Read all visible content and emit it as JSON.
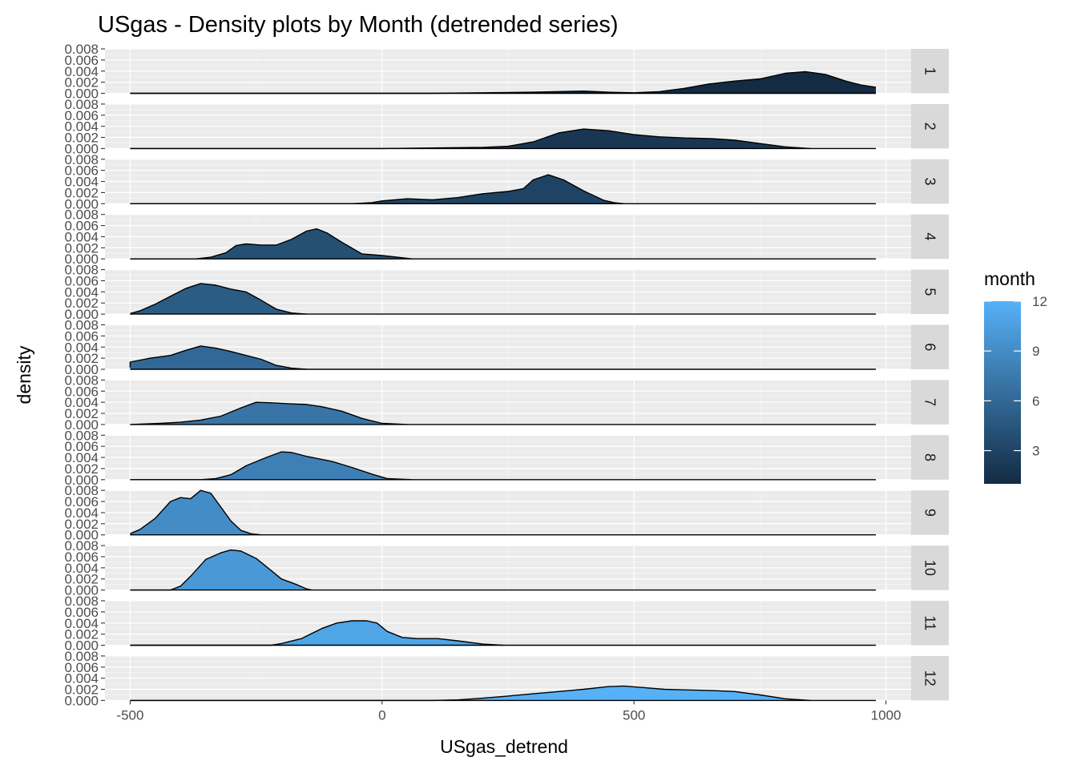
{
  "chart_data": {
    "type": "area",
    "title": "USgas - Density plots by Month (detrended series)",
    "xlabel": "USgas_detrend",
    "ylabel": "density",
    "x_range": [
      -500,
      980
    ],
    "xlim": [
      -550,
      1050
    ],
    "ylim": [
      0,
      0.008
    ],
    "x_ticks": [
      -500,
      0,
      500,
      1000
    ],
    "x_tick_labels": [
      "-500",
      "0",
      "500",
      "1000"
    ],
    "y_ticks": [
      0,
      0.002,
      0.004,
      0.006,
      0.008
    ],
    "y_tick_labels": [
      "0.000",
      "0.002",
      "0.004",
      "0.006",
      "0.008"
    ],
    "grid": true,
    "facets": "rows by month",
    "legend": {
      "title": "month",
      "placement": "right",
      "type": "colorbar",
      "range": [
        1,
        12
      ],
      "breaks": [
        3,
        6,
        9,
        12
      ],
      "break_labels": [
        "3",
        "6",
        "9",
        "12"
      ],
      "color_low": "#132b43",
      "color_high": "#56b1f7"
    },
    "panel_background": "#ebebeb",
    "strip_background": "#d9d9d9",
    "series": [
      {
        "name": "1",
        "points": [
          [
            -500,
            0
          ],
          [
            100,
            0
          ],
          [
            200,
            0.0001
          ],
          [
            300,
            0.0002
          ],
          [
            400,
            0.0004
          ],
          [
            450,
            0.0002
          ],
          [
            500,
            0.0001
          ],
          [
            550,
            0.0003
          ],
          [
            600,
            0.0009
          ],
          [
            650,
            0.0017
          ],
          [
            700,
            0.0022
          ],
          [
            750,
            0.0026
          ],
          [
            800,
            0.0036
          ],
          [
            840,
            0.0039
          ],
          [
            880,
            0.0034
          ],
          [
            920,
            0.0022
          ],
          [
            950,
            0.0015
          ],
          [
            980,
            0.0011
          ]
        ]
      },
      {
        "name": "2",
        "points": [
          [
            -500,
            0
          ],
          [
            0,
            0
          ],
          [
            100,
            0.0001
          ],
          [
            200,
            0.0002
          ],
          [
            250,
            0.0004
          ],
          [
            300,
            0.0012
          ],
          [
            350,
            0.0028
          ],
          [
            400,
            0.0035
          ],
          [
            450,
            0.0032
          ],
          [
            500,
            0.0025
          ],
          [
            550,
            0.0021
          ],
          [
            600,
            0.0019
          ],
          [
            650,
            0.0018
          ],
          [
            700,
            0.0015
          ],
          [
            750,
            0.0009
          ],
          [
            800,
            0.0003
          ],
          [
            850,
            0
          ]
        ]
      },
      {
        "name": "3",
        "points": [
          [
            -500,
            0
          ],
          [
            -60,
            0
          ],
          [
            -20,
            0.0002
          ],
          [
            0,
            0.0005
          ],
          [
            50,
            0.0009
          ],
          [
            100,
            0.0007
          ],
          [
            150,
            0.0011
          ],
          [
            200,
            0.0018
          ],
          [
            250,
            0.0022
          ],
          [
            280,
            0.0027
          ],
          [
            300,
            0.0043
          ],
          [
            330,
            0.0052
          ],
          [
            360,
            0.0043
          ],
          [
            400,
            0.0023
          ],
          [
            440,
            0.0006
          ],
          [
            460,
            0.0002
          ],
          [
            480,
            0
          ]
        ]
      },
      {
        "name": "4",
        "points": [
          [
            -500,
            0
          ],
          [
            -370,
            0
          ],
          [
            -340,
            0.0003
          ],
          [
            -310,
            0.0011
          ],
          [
            -290,
            0.0024
          ],
          [
            -270,
            0.0027
          ],
          [
            -240,
            0.0025
          ],
          [
            -210,
            0.0025
          ],
          [
            -180,
            0.0035
          ],
          [
            -150,
            0.005
          ],
          [
            -130,
            0.0054
          ],
          [
            -110,
            0.0047
          ],
          [
            -80,
            0.003
          ],
          [
            -40,
            0.0009
          ],
          [
            0,
            0.0006
          ],
          [
            30,
            0.0003
          ],
          [
            60,
            0
          ]
        ]
      },
      {
        "name": "5",
        "points": [
          [
            -500,
            0.0001
          ],
          [
            -480,
            0.0006
          ],
          [
            -450,
            0.0018
          ],
          [
            -420,
            0.0032
          ],
          [
            -390,
            0.0046
          ],
          [
            -360,
            0.0055
          ],
          [
            -330,
            0.0052
          ],
          [
            -300,
            0.0045
          ],
          [
            -270,
            0.004
          ],
          [
            -240,
            0.0025
          ],
          [
            -210,
            0.0009
          ],
          [
            -180,
            0.0002
          ],
          [
            -150,
            0
          ]
        ]
      },
      {
        "name": "6",
        "points": [
          [
            -500,
            0.0003
          ],
          [
            -500,
            0.0013
          ],
          [
            -460,
            0.002
          ],
          [
            -420,
            0.0025
          ],
          [
            -390,
            0.0034
          ],
          [
            -360,
            0.0042
          ],
          [
            -330,
            0.0038
          ],
          [
            -300,
            0.0032
          ],
          [
            -270,
            0.0025
          ],
          [
            -240,
            0.0018
          ],
          [
            -210,
            0.0007
          ],
          [
            -180,
            0.0002
          ],
          [
            -150,
            0
          ]
        ]
      },
      {
        "name": "7",
        "points": [
          [
            -500,
            0
          ],
          [
            -440,
            0.0002
          ],
          [
            -400,
            0.0004
          ],
          [
            -360,
            0.0008
          ],
          [
            -320,
            0.0015
          ],
          [
            -280,
            0.003
          ],
          [
            -250,
            0.004
          ],
          [
            -220,
            0.0039
          ],
          [
            -180,
            0.0037
          ],
          [
            -150,
            0.0036
          ],
          [
            -120,
            0.0032
          ],
          [
            -80,
            0.0024
          ],
          [
            -40,
            0.0011
          ],
          [
            0,
            0.0002
          ],
          [
            50,
            0
          ]
        ]
      },
      {
        "name": "8",
        "points": [
          [
            -500,
            0
          ],
          [
            -360,
            0
          ],
          [
            -330,
            0.0002
          ],
          [
            -300,
            0.0009
          ],
          [
            -270,
            0.0025
          ],
          [
            -230,
            0.004
          ],
          [
            -200,
            0.005
          ],
          [
            -180,
            0.0049
          ],
          [
            -150,
            0.0042
          ],
          [
            -100,
            0.0033
          ],
          [
            -60,
            0.0022
          ],
          [
            -20,
            0.001
          ],
          [
            10,
            0.0002
          ],
          [
            60,
            0
          ]
        ]
      },
      {
        "name": "9",
        "points": [
          [
            -500,
            0.0002
          ],
          [
            -480,
            0.001
          ],
          [
            -450,
            0.003
          ],
          [
            -420,
            0.006
          ],
          [
            -400,
            0.0067
          ],
          [
            -380,
            0.0065
          ],
          [
            -360,
            0.008
          ],
          [
            -340,
            0.0075
          ],
          [
            -320,
            0.005
          ],
          [
            -300,
            0.0025
          ],
          [
            -280,
            0.0008
          ],
          [
            -260,
            0.0002
          ],
          [
            -240,
            0
          ]
        ]
      },
      {
        "name": "10",
        "points": [
          [
            -500,
            0
          ],
          [
            -420,
            0
          ],
          [
            -400,
            0.0007
          ],
          [
            -380,
            0.0025
          ],
          [
            -350,
            0.0055
          ],
          [
            -320,
            0.0067
          ],
          [
            -300,
            0.0072
          ],
          [
            -280,
            0.007
          ],
          [
            -250,
            0.0057
          ],
          [
            -220,
            0.0035
          ],
          [
            -200,
            0.002
          ],
          [
            -170,
            0.001
          ],
          [
            -150,
            0.0002
          ],
          [
            -140,
            0
          ]
        ]
      },
      {
        "name": "11",
        "points": [
          [
            -500,
            0
          ],
          [
            -220,
            0
          ],
          [
            -200,
            0.0003
          ],
          [
            -160,
            0.0012
          ],
          [
            -120,
            0.003
          ],
          [
            -90,
            0.004
          ],
          [
            -60,
            0.0044
          ],
          [
            -30,
            0.0044
          ],
          [
            -10,
            0.004
          ],
          [
            10,
            0.0025
          ],
          [
            40,
            0.0014
          ],
          [
            70,
            0.0012
          ],
          [
            110,
            0.0012
          ],
          [
            150,
            0.0008
          ],
          [
            200,
            0.0002
          ],
          [
            240,
            0
          ]
        ]
      },
      {
        "name": "12",
        "points": [
          [
            -500,
            0
          ],
          [
            100,
            0
          ],
          [
            150,
            0.0001
          ],
          [
            200,
            0.0004
          ],
          [
            250,
            0.0008
          ],
          [
            300,
            0.0012
          ],
          [
            350,
            0.0016
          ],
          [
            400,
            0.002
          ],
          [
            450,
            0.0025
          ],
          [
            480,
            0.0026
          ],
          [
            520,
            0.0023
          ],
          [
            560,
            0.002
          ],
          [
            600,
            0.0019
          ],
          [
            650,
            0.0018
          ],
          [
            700,
            0.0016
          ],
          [
            750,
            0.001
          ],
          [
            800,
            0.0003
          ],
          [
            850,
            0
          ]
        ]
      }
    ]
  }
}
